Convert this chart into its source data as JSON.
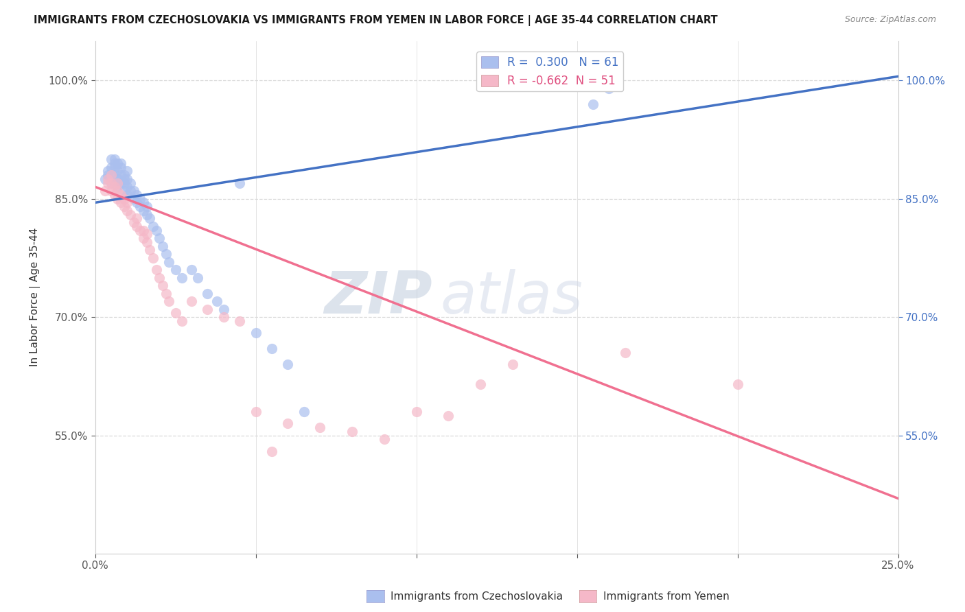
{
  "title": "IMMIGRANTS FROM CZECHOSLOVAKIA VS IMMIGRANTS FROM YEMEN IN LABOR FORCE | AGE 35-44 CORRELATION CHART",
  "source": "Source: ZipAtlas.com",
  "ylabel": "In Labor Force | Age 35-44",
  "xlim": [
    0.0,
    0.25
  ],
  "ylim": [
    0.4,
    1.05
  ],
  "xticks": [
    0.0,
    0.05,
    0.1,
    0.15,
    0.2,
    0.25
  ],
  "xticklabels": [
    "0.0%",
    "",
    "",
    "",
    "",
    "25.0%"
  ],
  "yticks": [
    0.55,
    0.7,
    0.85,
    1.0
  ],
  "yticklabels": [
    "55.0%",
    "70.0%",
    "85.0%",
    "100.0%"
  ],
  "background_color": "#ffffff",
  "grid_color": "#d8d8d8",
  "legend_R1": "0.300",
  "legend_N1": "61",
  "legend_R2": "-0.662",
  "legend_N2": "51",
  "blue_color": "#aabfee",
  "pink_color": "#f5b8c8",
  "line_blue_color": "#4472c4",
  "line_pink_color": "#f07090",
  "watermark_zip": "ZIP",
  "watermark_atlas": "atlas",
  "legend_label1": "Immigrants from Czechoslovakia",
  "legend_label2": "Immigrants from Yemen",
  "blue_line_x0": 0.0,
  "blue_line_y0": 0.845,
  "blue_line_x1": 0.25,
  "blue_line_y1": 1.005,
  "pink_line_x0": 0.0,
  "pink_line_y0": 0.865,
  "pink_line_x1": 0.25,
  "pink_line_y1": 0.47,
  "blue_x": [
    0.003,
    0.004,
    0.004,
    0.005,
    0.005,
    0.005,
    0.005,
    0.006,
    0.006,
    0.006,
    0.006,
    0.006,
    0.007,
    0.007,
    0.007,
    0.007,
    0.008,
    0.008,
    0.008,
    0.008,
    0.009,
    0.009,
    0.009,
    0.009,
    0.01,
    0.01,
    0.01,
    0.01,
    0.011,
    0.011,
    0.012,
    0.012,
    0.013,
    0.013,
    0.014,
    0.014,
    0.015,
    0.015,
    0.016,
    0.016,
    0.017,
    0.018,
    0.019,
    0.02,
    0.021,
    0.022,
    0.023,
    0.025,
    0.027,
    0.03,
    0.032,
    0.035,
    0.038,
    0.04,
    0.045,
    0.05,
    0.055,
    0.06,
    0.065,
    0.155,
    0.16
  ],
  "blue_y": [
    0.875,
    0.88,
    0.885,
    0.87,
    0.88,
    0.89,
    0.9,
    0.87,
    0.88,
    0.89,
    0.895,
    0.9,
    0.865,
    0.875,
    0.885,
    0.895,
    0.87,
    0.88,
    0.89,
    0.895,
    0.86,
    0.87,
    0.875,
    0.88,
    0.855,
    0.865,
    0.875,
    0.885,
    0.86,
    0.87,
    0.85,
    0.86,
    0.845,
    0.855,
    0.84,
    0.85,
    0.835,
    0.845,
    0.83,
    0.84,
    0.825,
    0.815,
    0.81,
    0.8,
    0.79,
    0.78,
    0.77,
    0.76,
    0.75,
    0.76,
    0.75,
    0.73,
    0.72,
    0.71,
    0.87,
    0.68,
    0.66,
    0.64,
    0.58,
    0.97,
    0.99
  ],
  "pink_x": [
    0.003,
    0.004,
    0.004,
    0.005,
    0.005,
    0.005,
    0.006,
    0.006,
    0.007,
    0.007,
    0.007,
    0.008,
    0.008,
    0.009,
    0.009,
    0.01,
    0.01,
    0.011,
    0.012,
    0.013,
    0.013,
    0.014,
    0.015,
    0.015,
    0.016,
    0.016,
    0.017,
    0.018,
    0.019,
    0.02,
    0.021,
    0.022,
    0.023,
    0.025,
    0.027,
    0.03,
    0.035,
    0.04,
    0.045,
    0.05,
    0.055,
    0.06,
    0.07,
    0.08,
    0.09,
    0.1,
    0.11,
    0.12,
    0.13,
    0.165,
    0.2
  ],
  "pink_y": [
    0.86,
    0.87,
    0.875,
    0.86,
    0.87,
    0.88,
    0.855,
    0.865,
    0.85,
    0.86,
    0.87,
    0.845,
    0.855,
    0.84,
    0.85,
    0.835,
    0.845,
    0.83,
    0.82,
    0.815,
    0.825,
    0.81,
    0.8,
    0.81,
    0.795,
    0.805,
    0.785,
    0.775,
    0.76,
    0.75,
    0.74,
    0.73,
    0.72,
    0.705,
    0.695,
    0.72,
    0.71,
    0.7,
    0.695,
    0.58,
    0.53,
    0.565,
    0.56,
    0.555,
    0.545,
    0.58,
    0.575,
    0.615,
    0.64,
    0.655,
    0.615
  ]
}
